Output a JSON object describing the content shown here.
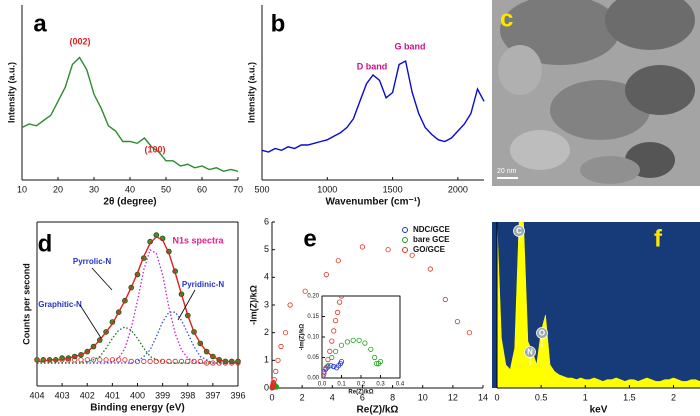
{
  "chart_data": [
    {
      "type": "line",
      "panel_label": "a",
      "xlabel": "2θ (degree)",
      "ylabel": "Intensity (a.u.)",
      "xlim": [
        10,
        70
      ],
      "ylim": [
        0,
        100
      ],
      "xticks": [
        10,
        20,
        30,
        40,
        50,
        60,
        70
      ],
      "x": [
        10,
        12,
        14,
        16,
        18,
        20,
        22,
        24,
        26,
        28,
        30,
        32,
        34,
        36,
        38,
        40,
        42,
        44,
        46,
        48,
        50,
        52,
        54,
        56,
        58,
        60,
        62,
        64,
        66,
        68,
        70
      ],
      "series": [
        {
          "color": "#2e8b2e",
          "values": [
            30,
            32,
            31,
            34,
            37,
            45,
            53,
            66,
            70,
            63,
            49,
            41,
            31,
            28,
            22,
            22,
            21,
            24,
            19,
            16,
            11,
            11,
            8,
            9,
            7,
            8,
            6,
            7,
            5,
            6,
            5
          ]
        }
      ],
      "annotations": [
        "(002)",
        "(100)"
      ]
    },
    {
      "type": "line",
      "panel_label": "b",
      "xlabel": "Wavenumber (cm⁻¹)",
      "ylabel": "Intensity (a.u.)",
      "xlim": [
        500,
        2200
      ],
      "ylim": [
        0,
        100
      ],
      "xticks": [
        500,
        1000,
        1500,
        2000
      ],
      "x": [
        500,
        550,
        600,
        650,
        700,
        750,
        800,
        850,
        900,
        950,
        1000,
        1050,
        1100,
        1150,
        1200,
        1250,
        1300,
        1350,
        1400,
        1450,
        1500,
        1550,
        1600,
        1650,
        1700,
        1750,
        1800,
        1850,
        1900,
        1950,
        2000,
        2050,
        2100,
        2150,
        2200
      ],
      "series": [
        {
          "color": "#0a0ad0",
          "values": [
            17,
            16,
            18,
            17,
            19,
            18,
            20,
            20,
            21,
            22,
            23,
            25,
            27,
            30,
            35,
            45,
            55,
            60,
            57,
            47,
            50,
            66,
            68,
            50,
            38,
            30,
            26,
            23,
            22,
            24,
            28,
            32,
            38,
            52,
            45
          ]
        }
      ],
      "annotations": [
        "D band",
        "G band"
      ]
    },
    {
      "type": "line",
      "panel_label": "d",
      "xlabel": "Binding energy (eV)",
      "ylabel": "Counts per second",
      "xlim": [
        404,
        396
      ],
      "ylim": [
        0,
        100
      ],
      "xticks": [
        404,
        403,
        402,
        401,
        400,
        399,
        398,
        397,
        396
      ],
      "x": [
        404,
        403.75,
        403.5,
        403.25,
        403,
        402.75,
        402.5,
        402.25,
        402,
        401.75,
        401.5,
        401.25,
        401,
        400.75,
        400.5,
        400.25,
        400,
        399.75,
        399.5,
        399.25,
        399,
        398.75,
        398.5,
        398.25,
        398,
        397.75,
        397.5,
        397.25,
        397,
        396.75,
        396.5,
        396.25,
        396
      ],
      "series": [
        {
          "color": "#3a9a2a",
          "mode": "markers",
          "values": [
            16,
            16,
            16,
            16,
            17,
            17,
            18,
            19,
            21,
            24,
            28,
            33,
            39,
            45,
            52,
            60,
            68,
            78,
            88,
            92,
            90,
            82,
            70,
            56,
            43,
            33,
            26,
            21,
            18,
            16,
            15,
            15,
            15
          ]
        },
        {
          "color": "#e02020",
          "mode": "line",
          "values": [
            15,
            15,
            16,
            16,
            16,
            17,
            18,
            19,
            21,
            24,
            28,
            33,
            38,
            45,
            52,
            60,
            69,
            79,
            87,
            91,
            89,
            81,
            69,
            56,
            43,
            33,
            26,
            21,
            18,
            16,
            15,
            15,
            14
          ]
        },
        {
          "name": "Pyrrolic-N",
          "color": "#d020d0",
          "mode": "dotted",
          "values": [
            14,
            14,
            14,
            14,
            14,
            14,
            14,
            14,
            14,
            14,
            14,
            14,
            15,
            17,
            23,
            35,
            52,
            71,
            83,
            81,
            68,
            48,
            32,
            22,
            17,
            15,
            14,
            14,
            14,
            14,
            14,
            14,
            14
          ]
        },
        {
          "name": "Pyridinic-N",
          "color": "#3050e0",
          "mode": "dotted",
          "values": [
            14,
            14,
            14,
            14,
            14,
            14,
            14,
            14,
            14,
            14,
            14,
            14,
            14,
            14,
            14,
            14,
            15,
            18,
            22,
            30,
            39,
            45,
            45,
            40,
            32,
            24,
            18,
            16,
            14,
            14,
            14,
            14,
            14
          ]
        },
        {
          "name": "Graphitic-N",
          "color": "#207020",
          "mode": "dotted",
          "values": [
            14,
            14,
            14,
            14,
            14,
            14,
            14,
            14,
            15,
            16,
            18,
            23,
            29,
            34,
            36,
            34,
            29,
            23,
            18,
            16,
            15,
            14,
            14,
            14,
            14,
            14,
            14,
            14,
            14,
            14,
            14,
            14,
            14
          ]
        },
        {
          "color": "#e02020",
          "mode": "open",
          "values": [
            16,
            16,
            16,
            16,
            16,
            16,
            16,
            16,
            16,
            16,
            16,
            16,
            16,
            16,
            16,
            15,
            15,
            15,
            15,
            15,
            15,
            15,
            15,
            15,
            15,
            15,
            15,
            14,
            14,
            14,
            14,
            14,
            14
          ]
        }
      ],
      "annotations": [
        "N1s spectra"
      ]
    },
    {
      "type": "scatter",
      "panel_label": "e",
      "xlabel": "Re(Z)/kΩ",
      "ylabel": "-Im(Z)/kΩ",
      "xlim": [
        0,
        14
      ],
      "ylim": [
        0,
        6
      ],
      "xticks": [
        0,
        2,
        4,
        6,
        8,
        10,
        12,
        14
      ],
      "yticks": [
        0,
        1,
        2,
        3,
        4,
        5,
        6
      ],
      "legend": "upper right",
      "series": [
        {
          "name": "NDC/GCE",
          "color": "#2233cc",
          "x": [
            0.005,
            0.01,
            0.02,
            0.03,
            0.045,
            0.06,
            0.075,
            0.085,
            0.095,
            0.1
          ],
          "values": [
            0.005,
            0.015,
            0.022,
            0.027,
            0.03,
            0.028,
            0.025,
            0.03,
            0.035,
            0.04
          ]
        },
        {
          "name": "bare GCE",
          "color": "#20a020",
          "x": [
            0.03,
            0.05,
            0.07,
            0.1,
            0.13,
            0.16,
            0.19,
            0.22,
            0.25,
            0.27,
            0.28,
            0.29,
            0.3
          ],
          "values": [
            0.03,
            0.05,
            0.065,
            0.08,
            0.088,
            0.092,
            0.092,
            0.085,
            0.07,
            0.05,
            0.035,
            0.035,
            0.04
          ]
        },
        {
          "name": "GO/GCE",
          "color": "#e03020",
          "x": [
            0.01,
            0.02,
            0.03,
            0.04,
            0.05,
            0.06,
            0.07,
            0.08,
            0.09,
            0.1,
            0.15,
            0.25,
            0.4,
            0.6,
            0.9,
            1.2,
            2.2,
            3.6,
            4.4,
            6.0,
            7.7,
            9.3,
            10.5,
            11.5,
            12.3,
            13.1
          ],
          "values": [
            0.01,
            0.025,
            0.045,
            0.065,
            0.09,
            0.115,
            0.14,
            0.16,
            0.185,
            0.2,
            0.3,
            0.6,
            1.0,
            1.5,
            2.0,
            3.0,
            3.5,
            4.1,
            4.6,
            5.1,
            5.0,
            4.8,
            4.3,
            3.2,
            2.4,
            2.0
          ]
        }
      ],
      "inset": {
        "xlabel": "Re(Z)/kΩ",
        "ylabel": "-Im(Z)/kΩ",
        "xlim": [
          0,
          0.4
        ],
        "ylim": [
          0,
          0.2
        ],
        "xticks": [
          {
            "value": 0,
            "label": "0.0"
          },
          {
            "value": 0.1,
            "label": "0.1"
          },
          {
            "value": 0.2,
            "label": "0.2"
          },
          {
            "value": 0.3,
            "label": "0.3"
          },
          {
            "value": 0.4,
            "label": "0.4"
          }
        ],
        "yticks": [
          {
            "value": 0,
            "label": "0.00"
          },
          {
            "value": 0.05,
            "label": "0.05"
          },
          {
            "value": 0.1,
            "label": "0.10"
          },
          {
            "value": 0.15,
            "label": "0.15"
          },
          {
            "value": 0.2,
            "label": "0.20"
          }
        ]
      }
    },
    {
      "type": "area",
      "panel_label": "f",
      "xlabel": "keV",
      "xlim": [
        0,
        2.3
      ],
      "ylim": [
        0,
        100
      ],
      "xticks": [
        0,
        0.5,
        1,
        1.5,
        2
      ],
      "background": "#173a78",
      "x": [
        0,
        0.05,
        0.1,
        0.15,
        0.2,
        0.25,
        0.3,
        0.35,
        0.4,
        0.45,
        0.5,
        0.55,
        0.6,
        0.65,
        0.7,
        0.75,
        0.8,
        0.85,
        0.9,
        0.95,
        1,
        1.05,
        1.1,
        1.15,
        1.2,
        1.25,
        1.3,
        1.35,
        1.4,
        1.45,
        1.5,
        1.55,
        1.6,
        1.65,
        1.7,
        1.75,
        1.8,
        1.85,
        1.9,
        1.95,
        2,
        2.05,
        2.1,
        2.15,
        2.2,
        2.25,
        2.3
      ],
      "series": [
        {
          "color": "#ffff00",
          "values": [
            100,
            30,
            14,
            11,
            24,
            100,
            100,
            28,
            22,
            14,
            34,
            44,
            14,
            10,
            8,
            7,
            6,
            6,
            5,
            6,
            5,
            5,
            6,
            5,
            4,
            5,
            5,
            6,
            5,
            4,
            5,
            5,
            4,
            5,
            6,
            5,
            4,
            4,
            5,
            5,
            6,
            5,
            4,
            4,
            5,
            5,
            4
          ]
        }
      ],
      "annotations": [
        "C",
        "N",
        "O"
      ]
    }
  ],
  "image": {
    "label": "c",
    "scale_bar": "20 nm"
  }
}
